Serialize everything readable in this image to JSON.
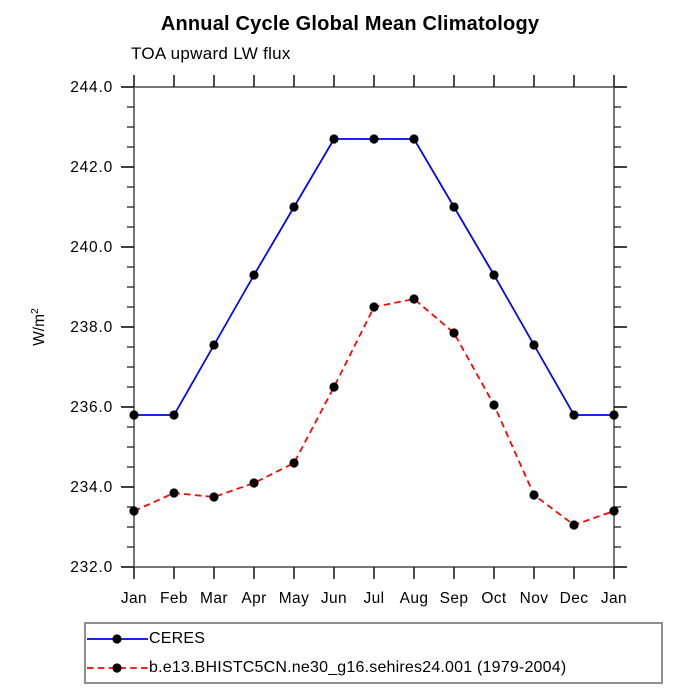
{
  "title": "Annual Cycle Global Mean Climatology",
  "subtitle": "TOA upward LW flux",
  "chart_data": {
    "type": "line",
    "x_categories": [
      "Jan",
      "Feb",
      "Mar",
      "Apr",
      "May",
      "Jun",
      "Jul",
      "Aug",
      "Sep",
      "Oct",
      "Nov",
      "Dec",
      "Jan"
    ],
    "ylabel": "W/m²",
    "ylim": [
      232.0,
      244.0
    ],
    "ytick_interval": 2.0,
    "ytick_labels": [
      "232.0",
      "234.0",
      "236.0",
      "238.0",
      "240.0",
      "242.0",
      "244.0"
    ],
    "minor_tick_interval": 0.5,
    "grid": false,
    "legend_position": "bottom-left-boxed",
    "series": [
      {
        "name": "CERES",
        "color": "#0000ff",
        "line_style": "solid",
        "marker": "filled-circle",
        "marker_color": "#000000",
        "values": [
          235.8,
          235.8,
          237.55,
          239.3,
          241.0,
          242.7,
          242.7,
          242.7,
          241.0,
          239.3,
          237.55,
          235.8,
          235.8
        ]
      },
      {
        "name": "b.e13.BHISTC5CN.ne30_g16.sehires24.001 (1979-2004)",
        "color": "#ff0000",
        "line_style": "dashed",
        "marker": "filled-circle",
        "marker_color": "#000000",
        "values": [
          233.4,
          233.85,
          233.75,
          234.1,
          234.6,
          236.5,
          238.5,
          238.7,
          237.85,
          236.05,
          233.8,
          233.05,
          233.4
        ]
      }
    ]
  },
  "colors": {
    "background": "#ffffff",
    "axis_border": "#777777",
    "tick": "#111111",
    "text": "#000000"
  }
}
